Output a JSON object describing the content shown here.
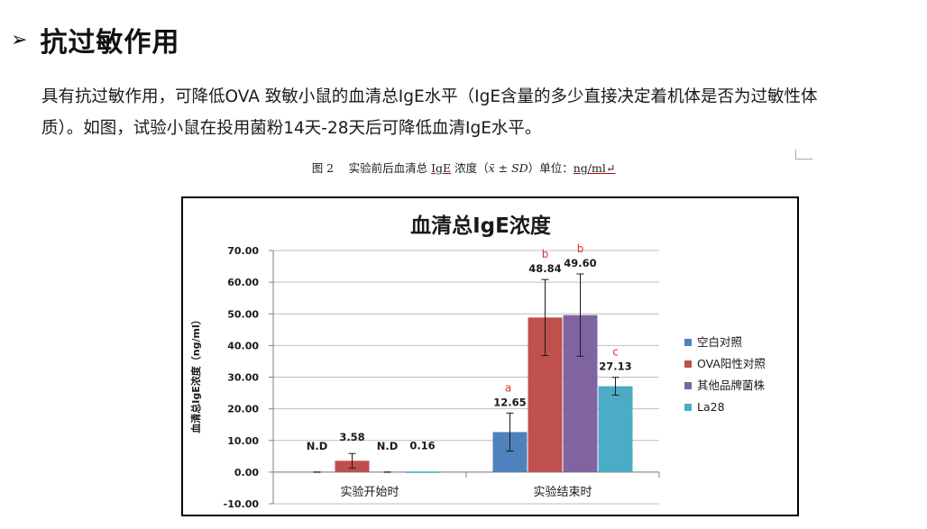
{
  "heading": {
    "bullet": "➢",
    "title": "抗过敏作用"
  },
  "paragraph": {
    "line1": "具有抗过敏作用，可降低OVA 致敏小鼠的血清总IgE水平（IgE含量的多少直接决定着机体是否为过敏性体",
    "line2": "质）。如图，试验小鼠在投用菌粉14天-28天后可降低血清IgE水平。"
  },
  "caption": {
    "prefix": "图 2　 实验前后血清总 ",
    "mid": " 浓度（",
    "suffix": "）单位：",
    "term": "IgE",
    "stat": "x̄ ± SD",
    "unit": "ng/ml↵"
  },
  "chart_data": {
    "type": "bar",
    "title": "血清总IgE浓度",
    "ylabel": "血清总IgE浓度（ng/ml）",
    "ylim": [
      -10,
      70
    ],
    "yticks": [
      -10,
      0,
      10,
      20,
      30,
      40,
      50,
      60,
      70
    ],
    "ytick_labels": [
      "-10.00",
      "0.00",
      "10.00",
      "20.00",
      "30.00",
      "40.00",
      "50.00",
      "60.00",
      "70.00"
    ],
    "categories": [
      "实验开始时",
      "实验结束时"
    ],
    "series": [
      {
        "name": "空白对照",
        "color": "#4f81bd",
        "values": [
          0,
          12.65
        ],
        "labels": [
          "N.D",
          "12.65"
        ],
        "errors": [
          0,
          6
        ],
        "sig": [
          "",
          "a"
        ]
      },
      {
        "name": "OVA阳性对照",
        "color": "#c0504d",
        "values": [
          3.58,
          48.84
        ],
        "labels": [
          "3.58",
          "48.84"
        ],
        "errors": [
          2.3,
          12
        ],
        "sig": [
          "",
          "b"
        ]
      },
      {
        "name": "其他品牌菌株",
        "color": "#8064a2",
        "values": [
          0,
          49.6
        ],
        "labels": [
          "N.D",
          "49.60"
        ],
        "errors": [
          0,
          13
        ],
        "sig": [
          "",
          "b"
        ]
      },
      {
        "name": "La28",
        "color": "#4bacc6",
        "values": [
          0.16,
          27.13
        ],
        "labels": [
          "0.16",
          "27.13"
        ],
        "errors": [
          0,
          2.8
        ],
        "sig": [
          "",
          "c"
        ]
      }
    ],
    "sig_color": "#e03030",
    "legend": "right"
  }
}
